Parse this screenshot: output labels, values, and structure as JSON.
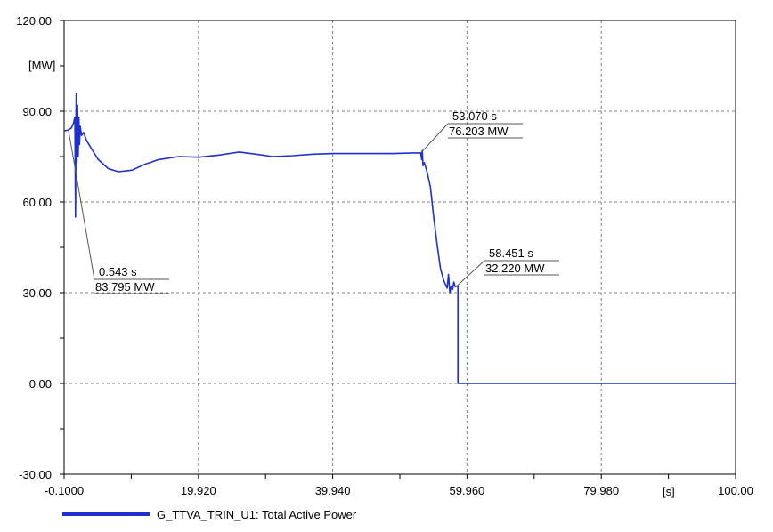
{
  "chart_data": {
    "type": "line",
    "xlim": [
      -0.1,
      100.0
    ],
    "ylim": [
      -30.0,
      120.0
    ],
    "x_ticks": [
      "-0.1000",
      "19.920",
      "39.940",
      "59.960",
      "79.980",
      "100.00"
    ],
    "x_tick_values": [
      -0.1,
      19.92,
      39.94,
      59.96,
      79.98,
      100.0
    ],
    "y_ticks": [
      "-30.00",
      "0.00",
      "30.00",
      "60.00",
      "90.00",
      "120.00"
    ],
    "y_tick_values": [
      -30,
      0,
      30,
      60,
      90,
      120
    ],
    "xlabel": "[s]",
    "ylabel": "[MW]",
    "grid": true,
    "legend_position": "bottom-left",
    "series": [
      {
        "name": "G_TTVA_TRIN_U1: Total Active Power",
        "color": "#1f2fd0",
        "x": [
          -0.1,
          0.543,
          1.0,
          1.3,
          1.5,
          1.6,
          1.7,
          1.8,
          1.9,
          2.0,
          2.1,
          2.2,
          2.3,
          2.5,
          2.8,
          3.2,
          4.0,
          5.0,
          6.5,
          8.0,
          10.0,
          12.0,
          14.0,
          17.0,
          20.0,
          23.0,
          26.0,
          28.5,
          31.0,
          34.0,
          37.0,
          40.0,
          43.0,
          46.0,
          49.0,
          52.0,
          53.07,
          53.2,
          53.3,
          53.4,
          53.6,
          54.0,
          54.5,
          55.0,
          55.5,
          56.0,
          56.5,
          57.0,
          57.2,
          57.4,
          57.6,
          57.8,
          58.0,
          58.2,
          58.451,
          58.6,
          58.6,
          100.0
        ],
        "y": [
          83.5,
          83.795,
          84.5,
          86.0,
          88.0,
          55.0,
          96.0,
          73.0,
          92.0,
          75.0,
          88.0,
          79.0,
          85.0,
          82.0,
          83.0,
          80.5,
          77.5,
          74.0,
          71.0,
          70.0,
          70.5,
          72.5,
          74.0,
          75.0,
          74.8,
          75.5,
          76.5,
          75.8,
          75.0,
          75.3,
          75.8,
          76.0,
          76.0,
          76.0,
          76.0,
          76.2,
          76.203,
          74.0,
          77.0,
          72.0,
          73.0,
          70.0,
          65.0,
          55.0,
          46.0,
          38.0,
          34.0,
          31.5,
          36.0,
          30.0,
          32.0,
          31.0,
          33.5,
          32.0,
          32.22,
          32.2,
          0.0,
          0.0
        ]
      }
    ],
    "annotations": [
      {
        "x": 0.543,
        "y": 83.795,
        "time_label": "0.543 s",
        "value_label": "83.795 MW"
      },
      {
        "x": 53.07,
        "y": 76.203,
        "time_label": "53.070 s",
        "value_label": "76.203 MW"
      },
      {
        "x": 58.451,
        "y": 32.22,
        "time_label": "58.451 s",
        "value_label": "32.220 MW"
      }
    ]
  }
}
